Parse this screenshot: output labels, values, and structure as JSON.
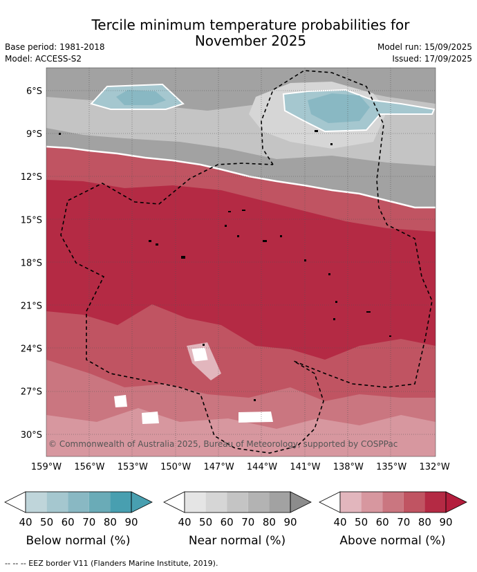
{
  "header": {
    "title_line1": "Tercile minimum temperature probabilities for",
    "title_line2": "November 2025",
    "base_period": "Base period: 1981-2018",
    "model": "Model: ACCESS-S2",
    "model_run": "Model run: 15/09/2025",
    "issued": "Issued: 17/09/2025"
  },
  "map": {
    "lat_labels": [
      "6°S",
      "9°S",
      "12°S",
      "15°S",
      "18°S",
      "21°S",
      "24°S",
      "27°S",
      "30°S"
    ],
    "lon_labels": [
      "159°W",
      "156°W",
      "153°W",
      "150°W",
      "147°W",
      "144°W",
      "141°W",
      "138°W",
      "135°W",
      "132°W"
    ],
    "copyright": "© Commonwealth of Australia 2025, Bureau of Meteorology, supported by COSPPac"
  },
  "colorbars": [
    {
      "title": "Below normal (%)",
      "ticks": [
        "40",
        "50",
        "60",
        "70",
        "80",
        "90"
      ],
      "colors": [
        "#bfd5da",
        "#a5c7cf",
        "#89b8c3",
        "#6aabb7",
        "#489fb0"
      ],
      "extend": "#489fb0"
    },
    {
      "title": "Near normal (%)",
      "ticks": [
        "40",
        "50",
        "60",
        "70",
        "80",
        "90"
      ],
      "colors": [
        "#e5e5e5",
        "#d6d6d6",
        "#c4c4c4",
        "#b3b3b3",
        "#a2a2a2"
      ],
      "extend": "#8c8c8c"
    },
    {
      "title": "Above normal (%)",
      "ticks": [
        "40",
        "50",
        "60",
        "70",
        "80",
        "90"
      ],
      "colors": [
        "#e2b6bd",
        "#d7979f",
        "#ca7680",
        "#c05462",
        "#b42a44"
      ],
      "extend": "#b31d3c"
    }
  ],
  "footer": "--  --  -- EEZ border V11 (Flanders Marine Institute, 2019)."
}
